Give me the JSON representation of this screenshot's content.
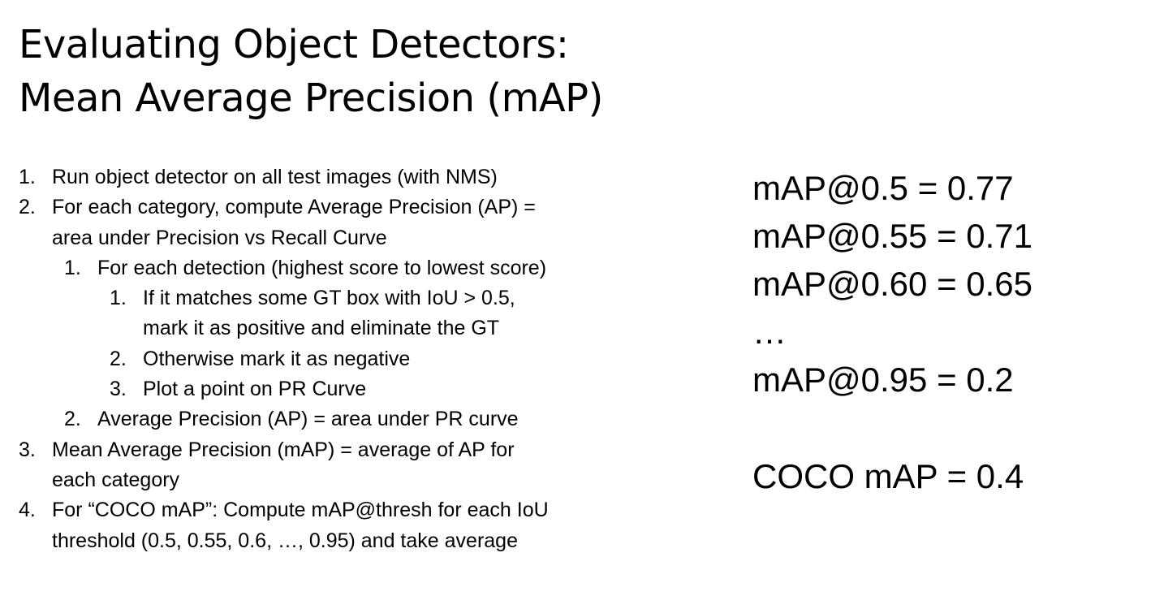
{
  "title": {
    "line1": "Evaluating Object Detectors:",
    "line2": "Mean Average Precision (mAP)"
  },
  "steps": [
    {
      "num": "1.",
      "lines": [
        "Run object detector on all test images (with NMS)"
      ]
    },
    {
      "num": "2.",
      "lines": [
        "For each category, compute Average Precision (AP) =",
        "area under Precision vs Recall Curve"
      ]
    },
    {
      "num": "1.",
      "lines": [
        "For each detection (highest score to lowest score)"
      ]
    },
    {
      "num": "1.",
      "lines": [
        "If it matches some GT box with IoU > 0.5,",
        "mark it as positive and eliminate the GT"
      ]
    },
    {
      "num": "2.",
      "lines": [
        "Otherwise mark it as negative"
      ]
    },
    {
      "num": "3.",
      "lines": [
        "Plot a point on PR Curve"
      ]
    },
    {
      "num": "2.",
      "lines": [
        "Average Precision (AP) = area under PR curve"
      ]
    },
    {
      "num": "3.",
      "lines": [
        "Mean Average Precision (mAP) = average of AP for",
        "each category"
      ]
    },
    {
      "num": "4.",
      "lines": [
        "For “COCO mAP”: Compute mAP@thresh for each IoU",
        "threshold (0.5, 0.55, 0.6, …, 0.95) and take average"
      ]
    }
  ],
  "results": {
    "map_05": "mAP@0.5 = 0.77",
    "map_055": "mAP@0.55 = 0.71",
    "map_060": "mAP@0.60 = 0.65",
    "ellipsis": "…",
    "map_095": "mAP@0.95 = 0.2",
    "coco_map": "COCO mAP = 0.4"
  }
}
